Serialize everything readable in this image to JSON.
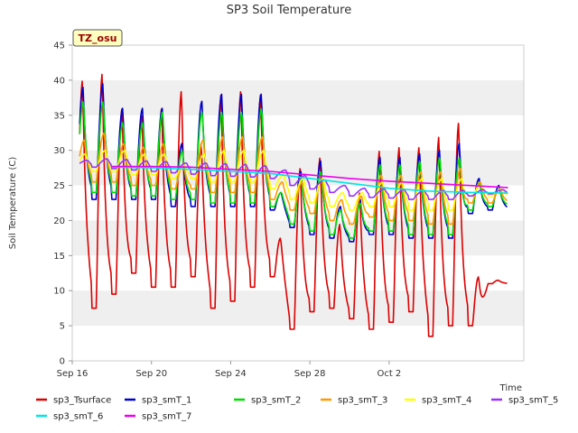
{
  "chart_data": {
    "type": "line",
    "title": "SP3 Soil Temperature",
    "site_label": "TZ_osu",
    "xlabel": "Time",
    "ylabel": "Soil Temperature (C)",
    "ylim": [
      0,
      45
    ],
    "yticks": [
      0,
      5,
      10,
      15,
      20,
      25,
      30,
      35,
      40,
      45
    ],
    "xlim": [
      0,
      22.8
    ],
    "xticks": [
      {
        "value": 0,
        "label": "Sep 16"
      },
      {
        "value": 4,
        "label": "Sep 20"
      },
      {
        "value": 8,
        "label": "Sep 24"
      },
      {
        "value": 12,
        "label": "Sep 28"
      },
      {
        "value": 16,
        "label": "Oct 2"
      }
    ],
    "x_unit": "days since Sep 16",
    "grid": "horizontal bands",
    "legend_position": "bottom",
    "series": [
      {
        "name": "sp3_Tsurface",
        "color": "#dd0000",
        "description": "daily minimum and maximum surface temperature",
        "daily_min": [
          12,
          7.5,
          9.5,
          12.5,
          10.5,
          10.5,
          12,
          7.5,
          8.5,
          10.5,
          12,
          4.5,
          7,
          7.5,
          6,
          4.5,
          5.5,
          7,
          3.5,
          5,
          5,
          11
        ],
        "daily_max": [
          40,
          41,
          36,
          35,
          36,
          38.5,
          31,
          38,
          38.5,
          38,
          17.5,
          27.5,
          29,
          19.5,
          24,
          30,
          30.5,
          30.5,
          32,
          34,
          12,
          11.5
        ]
      },
      {
        "name": "sp3_smT_1",
        "color": "#0000cc",
        "description": "daily min/max at first soil depth",
        "daily_min": [
          23,
          23,
          23,
          23,
          23,
          22,
          22,
          22,
          22,
          22,
          21.5,
          19,
          18,
          17.5,
          17,
          18,
          18,
          17.5,
          17.5,
          17.5,
          21,
          21.5
        ],
        "daily_max": [
          39,
          39.5,
          36,
          36,
          36,
          31,
          37,
          38,
          38,
          38,
          24,
          27,
          28.5,
          22,
          23,
          29,
          29,
          29.5,
          30,
          31,
          26,
          25
        ]
      },
      {
        "name": "sp3_smT_2",
        "color": "#00dd00",
        "description": "daily min/max at second soil depth",
        "daily_min": [
          24,
          24,
          24,
          23.5,
          23.5,
          23,
          23,
          22.5,
          22.5,
          22.5,
          22,
          19.5,
          18.5,
          18,
          17.5,
          18.5,
          18.5,
          18,
          18,
          18,
          21.5,
          22
        ],
        "daily_max": [
          37,
          37,
          34,
          34,
          35.5,
          30,
          35.5,
          35.5,
          35.5,
          36,
          24,
          26,
          27,
          21.5,
          22.5,
          28,
          28,
          28.5,
          29,
          29,
          25.5,
          24.5
        ]
      },
      {
        "name": "sp3_smT_3",
        "color": "#ff9900",
        "description": "daily min/max at third soil depth",
        "daily_min": [
          26,
          25.5,
          25.5,
          25,
          25,
          24.5,
          24.5,
          24,
          24,
          24,
          23,
          21.5,
          21,
          20,
          19.5,
          20.5,
          20,
          20,
          19.5,
          19.5,
          22.5,
          22.5
        ],
        "daily_max": [
          31.5,
          32.5,
          31,
          30.5,
          31,
          28,
          31.5,
          32,
          32,
          32,
          25.5,
          25.5,
          26,
          23,
          23.5,
          26.5,
          26.5,
          27,
          27,
          27.5,
          25.5,
          24.5
        ]
      },
      {
        "name": "sp3_smT_4",
        "color": "#ffff00",
        "description": "daily min/max at fourth soil depth",
        "daily_min": [
          27.5,
          27,
          27,
          26.5,
          26.5,
          26,
          26,
          25.5,
          25.5,
          25.5,
          24.5,
          23,
          22.5,
          22,
          21.5,
          22,
          22,
          21.5,
          21.5,
          21.5,
          23.5,
          23.5
        ],
        "daily_max": [
          29.5,
          30,
          30,
          29.5,
          29.5,
          28,
          29.5,
          30,
          30,
          30,
          26.5,
          26,
          26,
          24,
          24,
          25.5,
          25.5,
          26,
          26,
          26,
          25,
          24.5
        ]
      },
      {
        "name": "sp3_smT_5",
        "color": "#9933ff",
        "description": "daily min/max at fifth soil depth",
        "daily_min": [
          27.8,
          27.6,
          27.4,
          27.2,
          27,
          26.8,
          26.6,
          26.4,
          26.3,
          26.2,
          26,
          25,
          24.5,
          24,
          23.5,
          23.3,
          23.2,
          23,
          23,
          23,
          23.5,
          23.8
        ],
        "daily_max": [
          28.6,
          28.8,
          28.7,
          28.5,
          28.4,
          28.2,
          28.2,
          28.1,
          28,
          27.8,
          27.2,
          26.4,
          25.8,
          25,
          24.6,
          24.5,
          24.4,
          24.3,
          24.3,
          24.3,
          24.4,
          24.4
        ]
      },
      {
        "name": "sp3_smT_6",
        "color": "#00e5e5",
        "description": "slowly declining deep soil temperature",
        "x": [
          0,
          2,
          4,
          6,
          8,
          10,
          12,
          14,
          16,
          18,
          20,
          22
        ],
        "values": [
          27.5,
          27.6,
          27.5,
          27.3,
          27.0,
          26.7,
          26.0,
          25.3,
          24.6,
          24.2,
          24.0,
          23.9
        ]
      },
      {
        "name": "sp3_smT_7",
        "color": "#ee00ee",
        "description": "deepest soil temperature, nearly constant",
        "x": [
          0,
          2,
          4,
          6,
          8,
          10,
          12,
          14,
          16,
          18,
          20,
          22
        ],
        "values": [
          27.6,
          27.7,
          27.7,
          27.6,
          27.3,
          27.0,
          26.5,
          26.0,
          25.6,
          25.3,
          25.0,
          24.7
        ]
      }
    ]
  }
}
